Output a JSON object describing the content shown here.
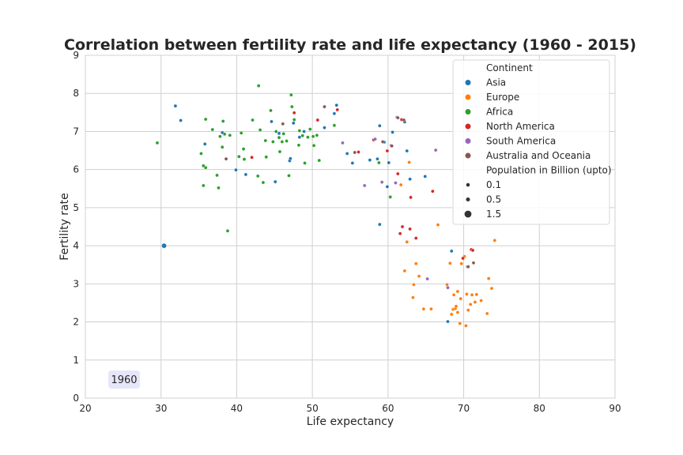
{
  "chart_data": {
    "type": "scatter",
    "title": "Correlation between fertility rate and life expectancy (1960 - 2015)",
    "xlabel": "Life expectancy",
    "ylabel": "Fertility rate",
    "xlim": [
      20,
      90
    ],
    "ylim": [
      0,
      9
    ],
    "xticks": [
      "20",
      "30",
      "40",
      "50",
      "60",
      "70",
      "80",
      "90"
    ],
    "yticks": [
      "0",
      "1",
      "2",
      "3",
      "4",
      "5",
      "6",
      "7",
      "8",
      "9"
    ],
    "grid": true,
    "year_label": "1960",
    "legend": {
      "placement": "top-right",
      "hue_title": "Continent",
      "size_title": "Population in Billion (upto)",
      "sizes": [
        {
          "label": "0.1",
          "value": 0.1
        },
        {
          "label": "0.5",
          "value": 0.5
        },
        {
          "label": "1.5",
          "value": 1.5
        }
      ]
    },
    "series": [
      {
        "name": "Asia",
        "color": "#1f77b4",
        "points": [
          [
            30.4,
            4.0,
            0.66
          ],
          [
            31.9,
            7.67,
            0.02
          ],
          [
            32.6,
            7.29,
            0.02
          ],
          [
            35.8,
            6.67,
            0.02
          ],
          [
            38.1,
            6.97,
            0.02
          ],
          [
            39.9,
            5.99,
            0.02
          ],
          [
            41.2,
            5.87,
            0.09
          ],
          [
            44.6,
            7.26,
            0.02
          ],
          [
            45.1,
            5.68,
            0.02
          ],
          [
            45.6,
            6.95,
            0.02
          ],
          [
            47.0,
            6.23,
            0.02
          ],
          [
            47.1,
            6.29,
            0.02
          ],
          [
            47.5,
            7.22,
            0.02
          ],
          [
            48.3,
            6.85,
            0.02
          ],
          [
            48.9,
            7.0,
            0.02
          ],
          [
            51.6,
            7.1,
            0.02
          ],
          [
            52.9,
            7.47,
            0.02
          ],
          [
            53.2,
            7.69,
            0.02
          ],
          [
            54.6,
            6.42,
            0.02
          ],
          [
            55.3,
            6.17,
            0.02
          ],
          [
            57.6,
            6.25,
            0.02
          ],
          [
            58.6,
            6.28,
            0.02
          ],
          [
            58.9,
            7.15,
            0.02
          ],
          [
            58.9,
            4.56,
            0.02
          ],
          [
            59.5,
            6.72,
            0.02
          ],
          [
            59.9,
            5.55,
            0.02
          ],
          [
            60.1,
            6.18,
            0.02
          ],
          [
            60.6,
            6.98,
            0.02
          ],
          [
            61.2,
            7.37,
            0.02
          ],
          [
            62.2,
            7.25,
            0.02
          ],
          [
            62.5,
            6.49,
            0.02
          ],
          [
            62.9,
            5.75,
            0.02
          ],
          [
            64.9,
            5.82,
            0.02
          ],
          [
            67.9,
            2.01,
            0.09
          ],
          [
            68.4,
            3.86,
            0.02
          ],
          [
            70.5,
            3.45,
            0.02
          ]
        ]
      },
      {
        "name": "Europe",
        "color": "#ff7f0e",
        "points": [
          [
            61.7,
            5.6,
            0.02
          ],
          [
            62.2,
            3.34,
            0.02
          ],
          [
            62.5,
            4.1,
            0.02
          ],
          [
            62.8,
            6.19,
            0.02
          ],
          [
            63.3,
            2.64,
            0.02
          ],
          [
            63.4,
            2.98,
            0.02
          ],
          [
            63.7,
            3.53,
            0.02
          ],
          [
            64.1,
            3.2,
            0.02
          ],
          [
            64.7,
            2.34,
            0.02
          ],
          [
            65.7,
            2.34,
            0.02
          ],
          [
            66.6,
            4.55,
            0.02
          ],
          [
            67.8,
            2.98,
            0.02
          ],
          [
            68.2,
            3.54,
            0.02
          ],
          [
            68.4,
            2.2,
            0.02
          ],
          [
            68.6,
            2.33,
            0.02
          ],
          [
            68.7,
            2.71,
            0.02
          ],
          [
            68.9,
            2.35,
            0.02
          ],
          [
            69.0,
            2.41,
            0.02
          ],
          [
            69.2,
            2.25,
            0.02
          ],
          [
            69.5,
            1.96,
            0.02
          ],
          [
            69.6,
            2.61,
            0.02
          ],
          [
            69.7,
            3.53,
            0.02
          ],
          [
            70.1,
            3.72,
            0.02
          ],
          [
            70.3,
            1.9,
            0.02
          ],
          [
            70.4,
            2.73,
            0.02
          ],
          [
            70.6,
            2.31,
            0.02
          ],
          [
            70.9,
            2.46,
            0.02
          ],
          [
            71.1,
            2.71,
            0.02
          ],
          [
            71.5,
            2.52,
            0.02
          ],
          [
            71.7,
            2.72,
            0.02
          ],
          [
            72.3,
            2.56,
            0.02
          ],
          [
            73.1,
            2.22,
            0.02
          ],
          [
            73.3,
            3.14,
            0.02
          ],
          [
            73.7,
            2.88,
            0.02
          ],
          [
            74.1,
            4.14,
            0.02
          ],
          [
            69.2,
            2.8,
            0.02
          ]
        ]
      },
      {
        "name": "Africa",
        "color": "#2ca02c",
        "points": [
          [
            29.5,
            6.7,
            0.02
          ],
          [
            35.3,
            6.42,
            0.02
          ],
          [
            35.6,
            5.58,
            0.02
          ],
          [
            35.6,
            6.1,
            0.02
          ],
          [
            35.9,
            7.32,
            0.02
          ],
          [
            35.9,
            6.05,
            0.02
          ],
          [
            36.8,
            7.05,
            0.02
          ],
          [
            37.4,
            5.85,
            0.02
          ],
          [
            37.6,
            5.52,
            0.02
          ],
          [
            37.8,
            6.87,
            0.02
          ],
          [
            38.1,
            6.59,
            0.02
          ],
          [
            38.2,
            7.27,
            0.02
          ],
          [
            38.4,
            6.93,
            0.02
          ],
          [
            38.6,
            6.28,
            0.02
          ],
          [
            38.8,
            4.39,
            0.02
          ],
          [
            39.1,
            6.9,
            0.02
          ],
          [
            40.3,
            6.34,
            0.02
          ],
          [
            40.6,
            6.96,
            0.02
          ],
          [
            40.9,
            6.54,
            0.02
          ],
          [
            41.0,
            6.27,
            0.02
          ],
          [
            42.1,
            7.3,
            0.02
          ],
          [
            42.8,
            5.83,
            0.02
          ],
          [
            42.9,
            8.2,
            0.02
          ],
          [
            43.1,
            7.04,
            0.02
          ],
          [
            43.5,
            5.66,
            0.02
          ],
          [
            43.8,
            6.76,
            0.02
          ],
          [
            43.9,
            6.33,
            0.02
          ],
          [
            44.5,
            7.55,
            0.02
          ],
          [
            44.8,
            6.73,
            0.02
          ],
          [
            45.2,
            7.0,
            0.02
          ],
          [
            45.6,
            6.84,
            0.02
          ],
          [
            45.7,
            6.47,
            0.02
          ],
          [
            46.0,
            6.73,
            0.02
          ],
          [
            46.2,
            6.94,
            0.02
          ],
          [
            46.6,
            6.75,
            0.02
          ],
          [
            46.9,
            5.84,
            0.02
          ],
          [
            47.2,
            7.96,
            0.02
          ],
          [
            47.3,
            7.65,
            0.02
          ],
          [
            47.6,
            7.31,
            0.02
          ],
          [
            48.2,
            6.64,
            0.02
          ],
          [
            48.3,
            7.02,
            0.02
          ],
          [
            49.0,
            6.17,
            0.02
          ],
          [
            49.4,
            6.85,
            0.02
          ],
          [
            49.7,
            7.06,
            0.02
          ],
          [
            50.1,
            6.87,
            0.02
          ],
          [
            50.2,
            6.63,
            0.02
          ],
          [
            50.6,
            6.9,
            0.02
          ],
          [
            50.9,
            6.24,
            0.02
          ],
          [
            52.9,
            7.16,
            0.02
          ],
          [
            58.8,
            6.18,
            0.02
          ],
          [
            60.3,
            5.28,
            0.02
          ],
          [
            48.7,
            6.89,
            0.02
          ]
        ]
      },
      {
        "name": "North America",
        "color": "#d62728",
        "points": [
          [
            38.6,
            6.28,
            0.02
          ],
          [
            42.0,
            6.32,
            0.02
          ],
          [
            47.6,
            7.49,
            0.02
          ],
          [
            50.7,
            7.3,
            0.02
          ],
          [
            53.3,
            7.57,
            0.02
          ],
          [
            56.1,
            6.46,
            0.02
          ],
          [
            58.1,
            6.78,
            0.02
          ],
          [
            59.9,
            6.49,
            0.02
          ],
          [
            61.3,
            5.89,
            0.02
          ],
          [
            61.6,
            4.32,
            0.02
          ],
          [
            61.8,
            7.31,
            0.02
          ],
          [
            61.9,
            4.5,
            0.02
          ],
          [
            62.9,
            4.44,
            0.02
          ],
          [
            63.0,
            5.27,
            0.02
          ],
          [
            63.7,
            4.2,
            0.02
          ],
          [
            65.9,
            5.43,
            0.02
          ],
          [
            69.9,
            3.67,
            0.05
          ],
          [
            71.0,
            3.9,
            0.02
          ],
          [
            71.2,
            3.88,
            0.02
          ]
        ]
      },
      {
        "name": "South America",
        "color": "#9467bd",
        "points": [
          [
            54.0,
            6.7,
            0.02
          ],
          [
            56.9,
            5.58,
            0.02
          ],
          [
            58.3,
            6.8,
            0.02
          ],
          [
            59.2,
            5.67,
            0.02
          ],
          [
            60.4,
            6.63,
            0.02
          ],
          [
            61.0,
            5.65,
            0.02
          ],
          [
            65.2,
            3.13,
            0.02
          ],
          [
            66.3,
            6.51,
            0.02
          ],
          [
            67.9,
            2.9,
            0.02
          ]
        ]
      },
      {
        "name": "Australia and Oceania",
        "color": "#8c564b",
        "points": [
          [
            38.6,
            6.28,
            0.02
          ],
          [
            46.1,
            7.2,
            0.02
          ],
          [
            51.6,
            7.65,
            0.02
          ],
          [
            55.6,
            6.45,
            0.02
          ],
          [
            59.3,
            6.73,
            0.02
          ],
          [
            60.5,
            6.62,
            0.02
          ],
          [
            61.3,
            7.36,
            0.02
          ],
          [
            62.1,
            7.3,
            0.02
          ],
          [
            70.6,
            3.45,
            0.02
          ],
          [
            71.3,
            3.55,
            0.02
          ]
        ]
      }
    ]
  }
}
